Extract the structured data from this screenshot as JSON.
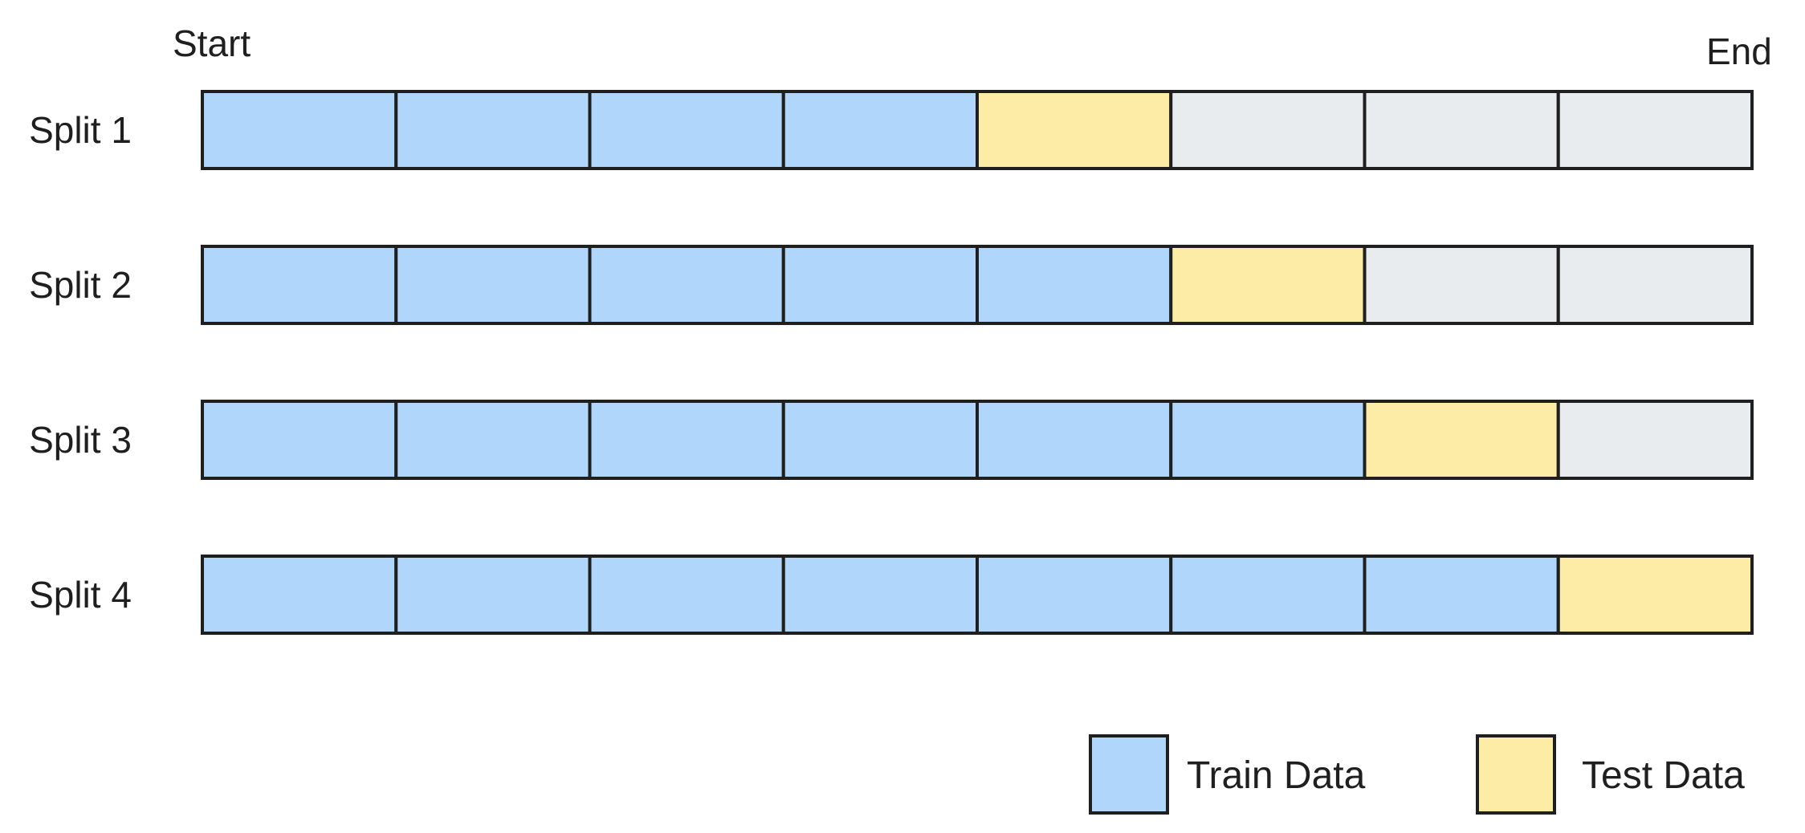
{
  "labels": {
    "start": "Start",
    "end": "End"
  },
  "colors": {
    "train": "#b0d6fb",
    "test": "#fdeca5",
    "unused": "#e8ecee",
    "outline": "#1f1f1f"
  },
  "segments_per_split": 8,
  "splits": [
    {
      "label": "Split 1",
      "segments": [
        "train",
        "train",
        "train",
        "train",
        "test",
        "unused",
        "unused",
        "unused"
      ]
    },
    {
      "label": "Split 2",
      "segments": [
        "train",
        "train",
        "train",
        "train",
        "train",
        "test",
        "unused",
        "unused"
      ]
    },
    {
      "label": "Split 3",
      "segments": [
        "train",
        "train",
        "train",
        "train",
        "train",
        "train",
        "test",
        "unused"
      ]
    },
    {
      "label": "Split 4",
      "segments": [
        "train",
        "train",
        "train",
        "train",
        "train",
        "train",
        "train",
        "test"
      ]
    }
  ],
  "legend": [
    {
      "key": "train",
      "label": "Train Data"
    },
    {
      "key": "test",
      "label": "Test Data"
    }
  ]
}
